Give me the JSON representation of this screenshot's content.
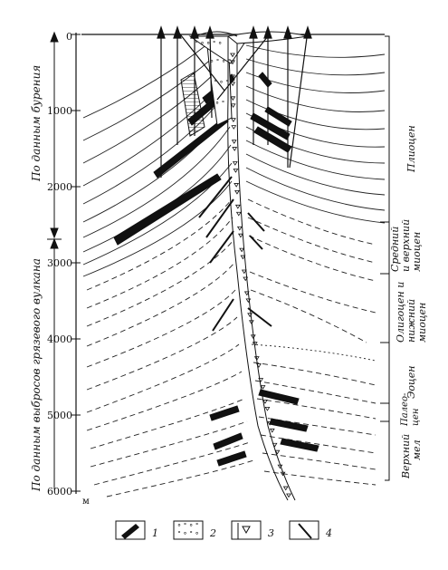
{
  "depth_axis": {
    "ticks": [
      "0",
      "1000",
      "2000",
      "3000",
      "4000",
      "5000",
      "6000"
    ],
    "unit": "м"
  },
  "left_labels": {
    "drilling": "По данным бурения",
    "mud_volcano": "По данным выбросов грязевого вулкана"
  },
  "stratigraphy": [
    {
      "lines": [
        "Плиоцен"
      ]
    },
    {
      "lines": [
        "Средний",
        "и верхний",
        "миоцен"
      ]
    },
    {
      "lines": [
        "Олигоцен и",
        "нижний",
        "миоцен"
      ]
    },
    {
      "lines": [
        "Эоцен"
      ]
    },
    {
      "lines": [
        "Палео-",
        "цен"
      ]
    },
    {
      "lines": [
        "Верхний",
        "мел"
      ]
    }
  ],
  "legend": [
    {
      "number": "1",
      "pattern": "black-lens"
    },
    {
      "number": "2",
      "pattern": "breccia-drops"
    },
    {
      "number": "3",
      "pattern": "triangles"
    },
    {
      "number": "4",
      "pattern": "fault-line"
    }
  ]
}
